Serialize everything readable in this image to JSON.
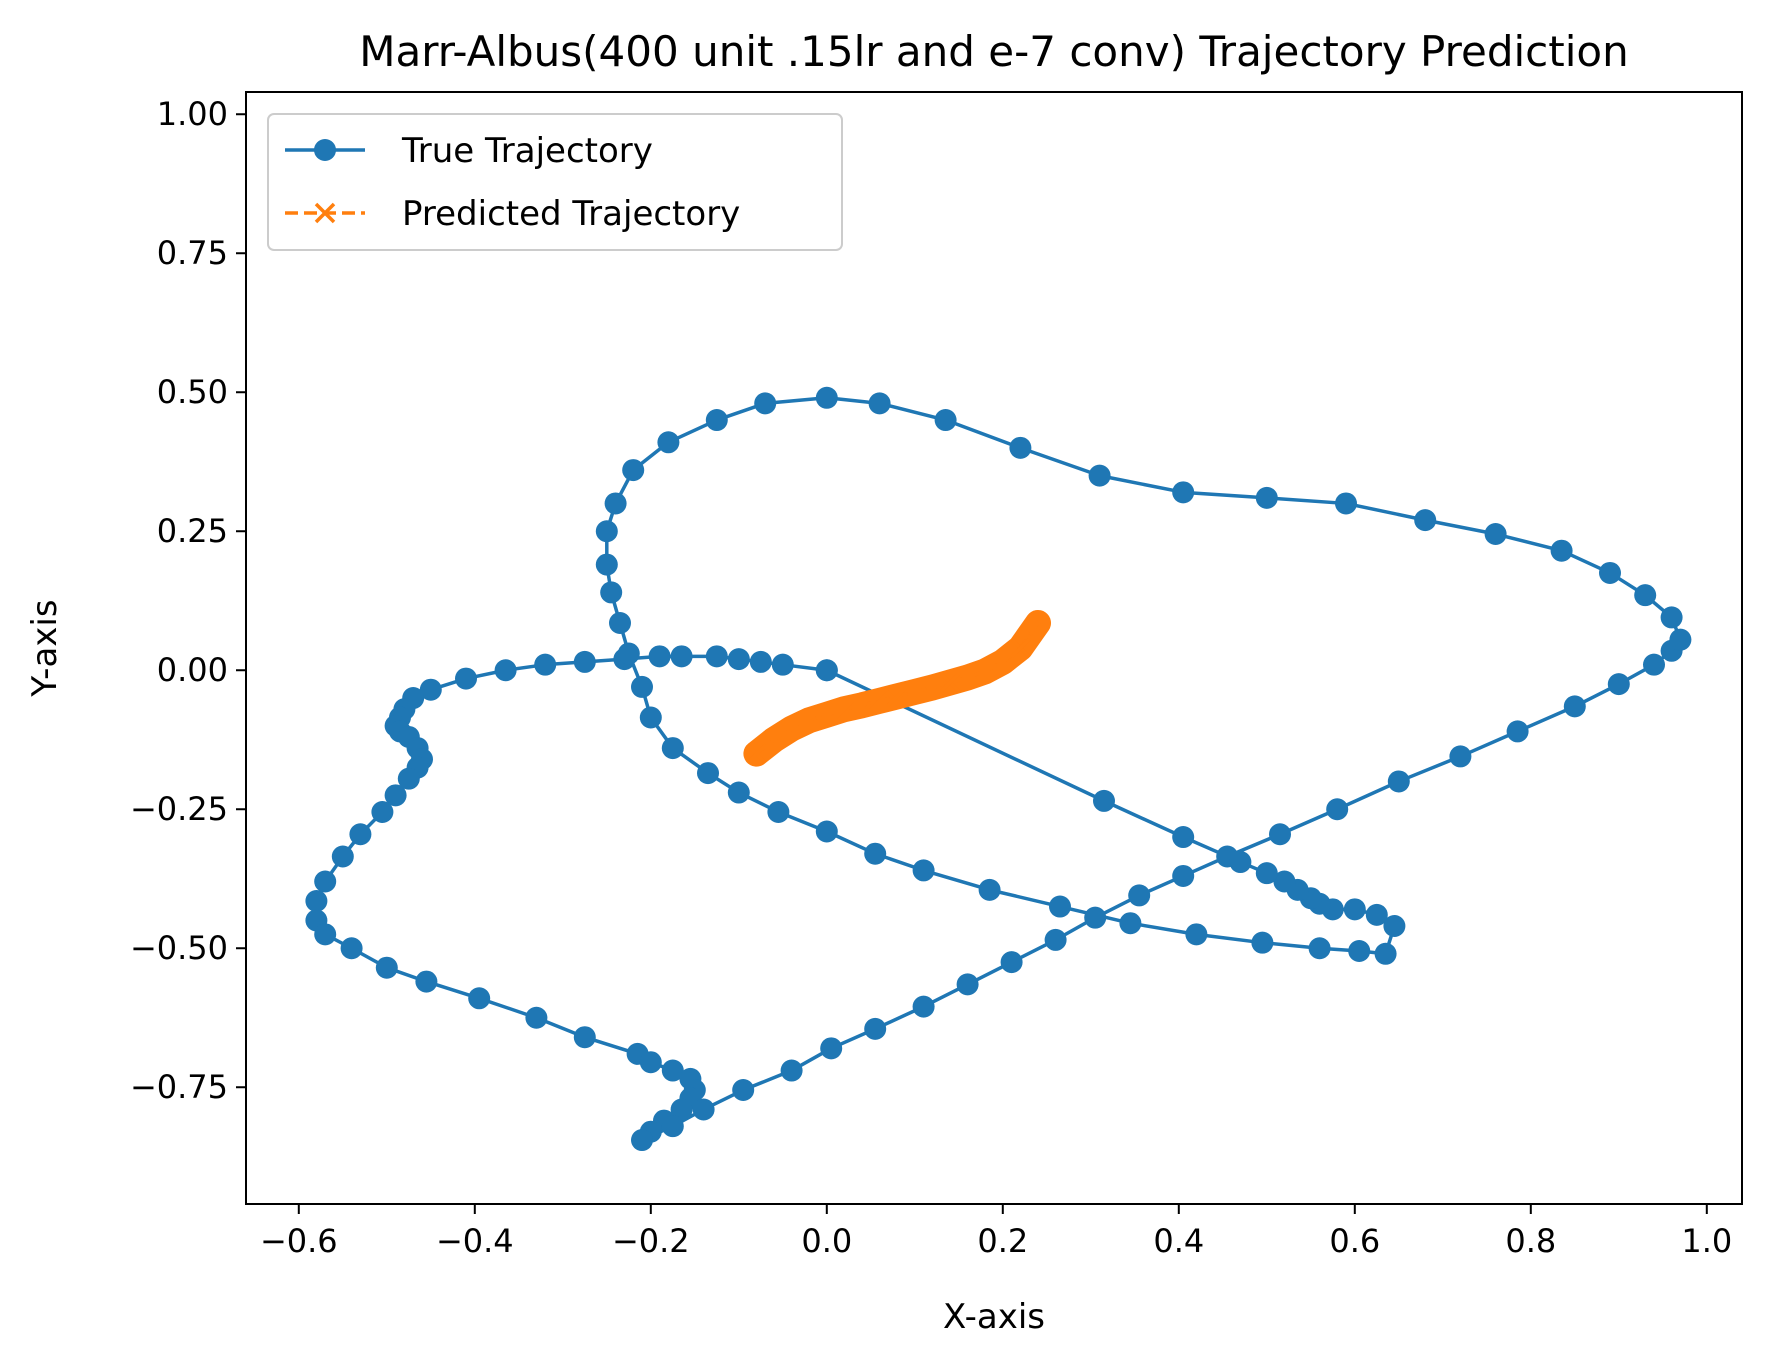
{
  "chart_data": {
    "type": "line",
    "title": "Marr-Albus(400 unit .15lr and e-7 conv) Trajectory Prediction",
    "xlabel": "X-axis",
    "ylabel": "Y-axis",
    "xlim": [
      -0.66,
      1.04
    ],
    "ylim": [
      -0.96,
      1.04
    ],
    "xticks": [
      -0.6,
      -0.4,
      -0.2,
      0.0,
      0.2,
      0.4,
      0.6,
      0.8,
      1.0
    ],
    "xtick_labels": [
      "−0.6",
      "−0.4",
      "−0.2",
      "0.0",
      "0.2",
      "0.4",
      "0.6",
      "0.8",
      "1.0"
    ],
    "yticks": [
      -0.75,
      -0.5,
      -0.25,
      0.0,
      0.25,
      0.5,
      0.75,
      1.0
    ],
    "ytick_labels": [
      "−0.75",
      "−0.50",
      "−0.25",
      "0.00",
      "0.25",
      "0.50",
      "0.75",
      "1.00"
    ],
    "grid": false,
    "legend_position": "top-left",
    "series": [
      {
        "name": "True Trajectory",
        "color": "#1f77b4",
        "marker": "circle",
        "linestyle": "solid",
        "x": [
          0.0,
          -0.05,
          -0.075,
          -0.1,
          -0.125,
          -0.165,
          -0.19,
          -0.23,
          -0.275,
          -0.32,
          -0.365,
          -0.41,
          -0.45,
          -0.47,
          -0.48,
          -0.485,
          -0.49,
          -0.485,
          -0.475,
          -0.465,
          -0.46,
          -0.465,
          -0.475,
          -0.49,
          -0.505,
          -0.53,
          -0.55,
          -0.57,
          -0.58,
          -0.58,
          -0.57,
          -0.54,
          -0.5,
          -0.455,
          -0.395,
          -0.33,
          -0.275,
          -0.215,
          -0.2,
          -0.175,
          -0.155,
          -0.15,
          -0.155,
          -0.165,
          -0.185,
          -0.2,
          -0.21,
          -0.175,
          -0.14,
          -0.095,
          -0.04,
          0.005,
          0.055,
          0.11,
          0.16,
          0.21,
          0.26,
          0.305,
          0.355,
          0.405,
          0.455,
          0.515,
          0.58,
          0.65,
          0.72,
          0.785,
          0.85,
          0.9,
          0.94,
          0.96,
          0.97,
          0.96,
          0.93,
          0.89,
          0.835,
          0.76,
          0.68,
          0.59,
          0.5,
          0.405,
          0.31,
          0.22,
          0.135,
          0.06,
          0.0,
          -0.07,
          -0.125,
          -0.18,
          -0.22,
          -0.24,
          -0.25,
          -0.25,
          -0.245,
          -0.235,
          -0.225,
          -0.21,
          -0.2,
          -0.175,
          -0.135,
          -0.1,
          -0.055,
          0.0,
          0.055,
          0.11,
          0.185,
          0.265,
          0.345,
          0.42,
          0.495,
          0.56,
          0.605,
          0.635,
          0.645,
          0.625,
          0.6,
          0.575,
          0.56,
          0.55,
          0.535,
          0.52,
          0.5,
          0.47,
          0.405,
          0.315,
          0.0
        ],
        "y": [
          0.0,
          0.01,
          0.015,
          0.02,
          0.025,
          0.025,
          0.025,
          0.02,
          0.015,
          0.01,
          0.0,
          -0.015,
          -0.035,
          -0.05,
          -0.07,
          -0.085,
          -0.1,
          -0.11,
          -0.12,
          -0.14,
          -0.16,
          -0.175,
          -0.195,
          -0.225,
          -0.255,
          -0.295,
          -0.335,
          -0.38,
          -0.415,
          -0.45,
          -0.475,
          -0.5,
          -0.535,
          -0.56,
          -0.59,
          -0.625,
          -0.66,
          -0.69,
          -0.705,
          -0.72,
          -0.735,
          -0.755,
          -0.77,
          -0.79,
          -0.81,
          -0.83,
          -0.845,
          -0.82,
          -0.79,
          -0.755,
          -0.72,
          -0.68,
          -0.645,
          -0.605,
          -0.565,
          -0.525,
          -0.485,
          -0.445,
          -0.405,
          -0.37,
          -0.335,
          -0.295,
          -0.25,
          -0.2,
          -0.155,
          -0.11,
          -0.065,
          -0.025,
          0.01,
          0.035,
          0.055,
          0.095,
          0.135,
          0.175,
          0.215,
          0.245,
          0.27,
          0.3,
          0.31,
          0.32,
          0.35,
          0.4,
          0.45,
          0.48,
          0.49,
          0.48,
          0.45,
          0.41,
          0.36,
          0.3,
          0.25,
          0.19,
          0.14,
          0.085,
          0.03,
          -0.03,
          -0.085,
          -0.14,
          -0.185,
          -0.22,
          -0.255,
          -0.29,
          -0.33,
          -0.36,
          -0.395,
          -0.425,
          -0.455,
          -0.475,
          -0.49,
          -0.5,
          -0.505,
          -0.51,
          -0.46,
          -0.44,
          -0.43,
          -0.43,
          -0.42,
          -0.41,
          -0.395,
          -0.38,
          -0.365,
          -0.345,
          -0.3,
          -0.235,
          0.0
        ]
      },
      {
        "name": "Predicted Trajectory",
        "color": "#ff7f0e",
        "marker": "x",
        "linestyle": "dashed",
        "x": [
          -0.08,
          -0.06,
          -0.04,
          -0.02,
          0.0,
          0.02,
          0.04,
          0.06,
          0.08,
          0.1,
          0.12,
          0.14,
          0.16,
          0.18,
          0.2,
          0.22,
          0.24
        ],
        "y": [
          -0.15,
          -0.125,
          -0.105,
          -0.09,
          -0.08,
          -0.07,
          -0.063,
          -0.055,
          -0.047,
          -0.039,
          -0.031,
          -0.022,
          -0.013,
          -0.002,
          0.015,
          0.04,
          0.085
        ]
      }
    ]
  }
}
